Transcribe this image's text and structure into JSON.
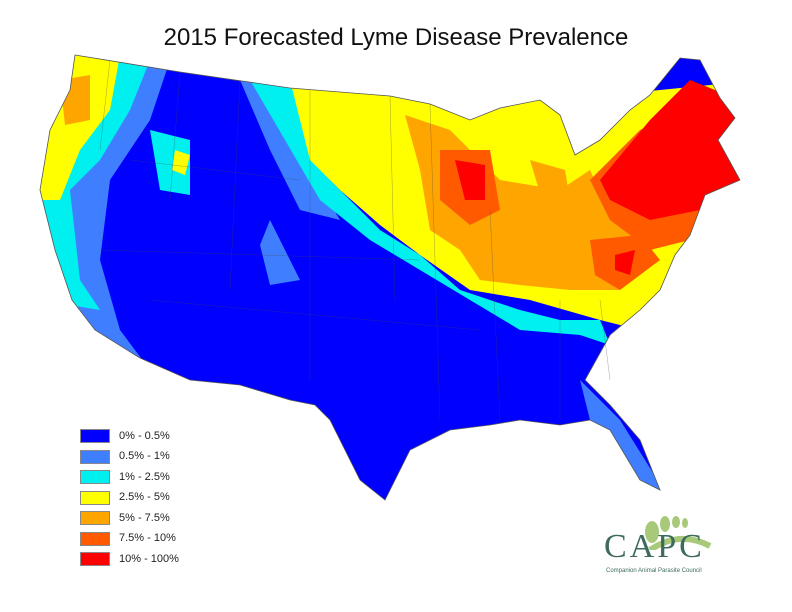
{
  "title": "2015 Forecasted Lyme Disease Prevalence",
  "legend": [
    {
      "label": "0% - 0.5%",
      "color": "#0000ff"
    },
    {
      "label": "0.5% - 1%",
      "color": "#3f7fff"
    },
    {
      "label": "1% - 2.5%",
      "color": "#00f0f0"
    },
    {
      "label": "2.5% - 5%",
      "color": "#ffff00"
    },
    {
      "label": "5% - 7.5%",
      "color": "#ffa500"
    },
    {
      "label": "7.5% - 10%",
      "color": "#ff5a00"
    },
    {
      "label": "10% - 100%",
      "color": "#ff0000"
    }
  ],
  "logo": {
    "name": "CAPC",
    "subtitle": "Companion Animal Parasite Council"
  }
}
